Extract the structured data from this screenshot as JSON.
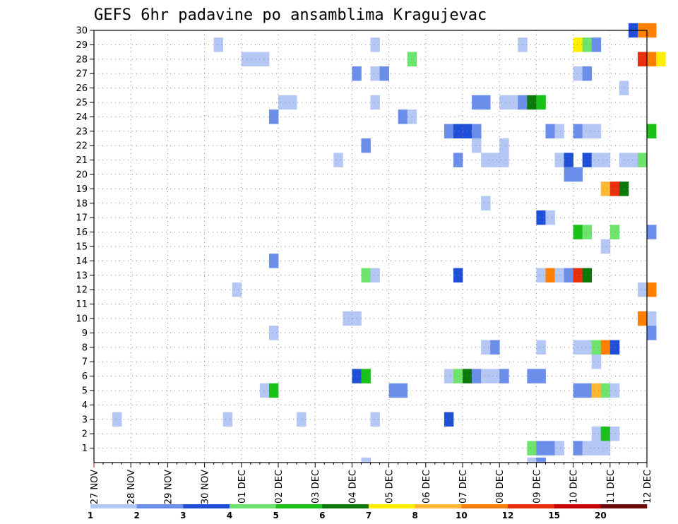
{
  "chart_data": {
    "type": "heatmap",
    "title": "GEFS 6hr padavine po ansamblima Kragujevac",
    "xlabel": "",
    "ylabel": "",
    "x_tick_labels": [
      "27 NOV",
      "28 NOV",
      "29 NOV",
      "30 NOV",
      "01 DEC",
      "02 DEC",
      "03 DEC",
      "04 DEC",
      "05 DEC",
      "06 DEC",
      "07 DEC",
      "08 DEC",
      "09 DEC",
      "10 DEC",
      "11 DEC",
      "12 DEC"
    ],
    "x_time_step_hours": 6,
    "y_tick_labels": [
      "1",
      "2",
      "3",
      "4",
      "5",
      "6",
      "7",
      "8",
      "9",
      "10",
      "11",
      "12",
      "13",
      "14",
      "15",
      "16",
      "17",
      "18",
      "19",
      "20",
      "21",
      "22",
      "23",
      "24",
      "25",
      "26",
      "27",
      "28",
      "29",
      "30"
    ],
    "ylim": [
      0,
      30
    ],
    "grid": true,
    "legend_position": "bottom",
    "legend_labels": [
      "1",
      "2",
      "3",
      "4",
      "5",
      "6",
      "7",
      "8",
      "10",
      "12",
      "15",
      "20"
    ],
    "color_scale": [
      "#b4c7f5",
      "#6b8eea",
      "#1f4fd6",
      "#6ee46e",
      "#19c119",
      "#0b7a0b",
      "#ffee00",
      "#ffb833",
      "#ff7f00",
      "#e8300c",
      "#c40000",
      "#6a0a0a"
    ],
    "cells": [
      {
        "member": 30,
        "t": [
          58
        ],
        "c": 2
      },
      {
        "member": 30,
        "t": [
          59,
          60
        ],
        "c": 8
      },
      {
        "member": 29,
        "t": [
          13
        ],
        "c": 0
      },
      {
        "member": 29,
        "t": [
          30
        ],
        "c": 0
      },
      {
        "member": 29,
        "t": [
          46
        ],
        "c": 0
      },
      {
        "member": 29,
        "t": [
          52
        ],
        "c": 6
      },
      {
        "member": 29,
        "t": [
          53
        ],
        "c": 3
      },
      {
        "member": 29,
        "t": [
          54
        ],
        "c": 1
      },
      {
        "member": 28,
        "t": [
          16,
          17,
          18
        ],
        "c": 0
      },
      {
        "member": 28,
        "t": [
          34
        ],
        "c": 3
      },
      {
        "member": 28,
        "t": [
          59
        ],
        "c": 9
      },
      {
        "member": 28,
        "t": [
          60
        ],
        "c": 8
      },
      {
        "member": 28,
        "t": [
          61
        ],
        "c": 6
      },
      {
        "member": 27,
        "t": [
          28
        ],
        "c": 1
      },
      {
        "member": 27,
        "t": [
          30
        ],
        "c": 0
      },
      {
        "member": 27,
        "t": [
          31
        ],
        "c": 1
      },
      {
        "member": 27,
        "t": [
          52
        ],
        "c": 0
      },
      {
        "member": 27,
        "t": [
          53
        ],
        "c": 1
      },
      {
        "member": 26,
        "t": [
          57
        ],
        "c": 0
      },
      {
        "member": 25,
        "t": [
          20,
          21
        ],
        "c": 0
      },
      {
        "member": 25,
        "t": [
          30
        ],
        "c": 0
      },
      {
        "member": 25,
        "t": [
          41,
          42
        ],
        "c": 1
      },
      {
        "member": 25,
        "t": [
          44,
          45
        ],
        "c": 0
      },
      {
        "member": 25,
        "t": [
          46
        ],
        "c": 1
      },
      {
        "member": 25,
        "t": [
          47
        ],
        "c": 5
      },
      {
        "member": 25,
        "t": [
          48
        ],
        "c": 4
      },
      {
        "member": 24,
        "t": [
          19
        ],
        "c": 1
      },
      {
        "member": 24,
        "t": [
          33
        ],
        "c": 1
      },
      {
        "member": 24,
        "t": [
          34
        ],
        "c": 0
      },
      {
        "member": 23,
        "t": [
          38
        ],
        "c": 1
      },
      {
        "member": 23,
        "t": [
          39,
          40
        ],
        "c": 2
      },
      {
        "member": 23,
        "t": [
          41
        ],
        "c": 1
      },
      {
        "member": 23,
        "t": [
          49
        ],
        "c": 1
      },
      {
        "member": 23,
        "t": [
          50
        ],
        "c": 0
      },
      {
        "member": 23,
        "t": [
          52
        ],
        "c": 1
      },
      {
        "member": 23,
        "t": [
          53,
          54
        ],
        "c": 0
      },
      {
        "member": 23,
        "t": [
          60
        ],
        "c": 4
      },
      {
        "member": 22,
        "t": [
          29
        ],
        "c": 1
      },
      {
        "member": 22,
        "t": [
          41
        ],
        "c": 0
      },
      {
        "member": 22,
        "t": [
          44
        ],
        "c": 0
      },
      {
        "member": 21,
        "t": [
          26
        ],
        "c": 0
      },
      {
        "member": 21,
        "t": [
          39
        ],
        "c": 1
      },
      {
        "member": 21,
        "t": [
          42,
          43,
          44
        ],
        "c": 0
      },
      {
        "member": 21,
        "t": [
          50
        ],
        "c": 0
      },
      {
        "member": 21,
        "t": [
          51
        ],
        "c": 2
      },
      {
        "member": 21,
        "t": [
          53
        ],
        "c": 2
      },
      {
        "member": 21,
        "t": [
          54,
          55
        ],
        "c": 0
      },
      {
        "member": 21,
        "t": [
          57,
          58
        ],
        "c": 0
      },
      {
        "member": 21,
        "t": [
          59
        ],
        "c": 3
      },
      {
        "member": 20,
        "t": [
          51,
          52
        ],
        "c": 1
      },
      {
        "member": 19,
        "t": [
          55
        ],
        "c": 7
      },
      {
        "member": 19,
        "t": [
          56
        ],
        "c": 9
      },
      {
        "member": 19,
        "t": [
          57
        ],
        "c": 5
      },
      {
        "member": 18,
        "t": [
          42
        ],
        "c": 0
      },
      {
        "member": 17,
        "t": [
          48
        ],
        "c": 2
      },
      {
        "member": 17,
        "t": [
          49
        ],
        "c": 0
      },
      {
        "member": 16,
        "t": [
          52
        ],
        "c": 4
      },
      {
        "member": 16,
        "t": [
          53
        ],
        "c": 3
      },
      {
        "member": 16,
        "t": [
          56
        ],
        "c": 3
      },
      {
        "member": 16,
        "t": [
          60
        ],
        "c": 1
      },
      {
        "member": 15,
        "t": [
          55
        ],
        "c": 0
      },
      {
        "member": 14,
        "t": [
          19
        ],
        "c": 1
      },
      {
        "member": 13,
        "t": [
          29
        ],
        "c": 3
      },
      {
        "member": 13,
        "t": [
          30
        ],
        "c": 0
      },
      {
        "member": 13,
        "t": [
          39
        ],
        "c": 2
      },
      {
        "member": 13,
        "t": [
          48
        ],
        "c": 0
      },
      {
        "member": 13,
        "t": [
          49
        ],
        "c": 8
      },
      {
        "member": 13,
        "t": [
          50
        ],
        "c": 0
      },
      {
        "member": 13,
        "t": [
          51
        ],
        "c": 1
      },
      {
        "member": 13,
        "t": [
          52
        ],
        "c": 9
      },
      {
        "member": 13,
        "t": [
          53
        ],
        "c": 5
      },
      {
        "member": 12,
        "t": [
          15
        ],
        "c": 0
      },
      {
        "member": 12,
        "t": [
          59
        ],
        "c": 0
      },
      {
        "member": 12,
        "t": [
          60
        ],
        "c": 8
      },
      {
        "member": 10,
        "t": [
          27,
          28
        ],
        "c": 0
      },
      {
        "member": 10,
        "t": [
          59
        ],
        "c": 8
      },
      {
        "member": 10,
        "t": [
          60
        ],
        "c": 0
      },
      {
        "member": 9,
        "t": [
          19
        ],
        "c": 0
      },
      {
        "member": 9,
        "t": [
          60
        ],
        "c": 1
      },
      {
        "member": 8,
        "t": [
          42
        ],
        "c": 0
      },
      {
        "member": 8,
        "t": [
          43
        ],
        "c": 1
      },
      {
        "member": 8,
        "t": [
          48
        ],
        "c": 0
      },
      {
        "member": 8,
        "t": [
          52,
          53
        ],
        "c": 0
      },
      {
        "member": 8,
        "t": [
          54
        ],
        "c": 3
      },
      {
        "member": 8,
        "t": [
          55
        ],
        "c": 8
      },
      {
        "member": 8,
        "t": [
          56
        ],
        "c": 2
      },
      {
        "member": 7,
        "t": [
          54
        ],
        "c": 0
      },
      {
        "member": 6,
        "t": [
          28
        ],
        "c": 2
      },
      {
        "member": 6,
        "t": [
          29
        ],
        "c": 4
      },
      {
        "member": 6,
        "t": [
          38
        ],
        "c": 0
      },
      {
        "member": 6,
        "t": [
          39
        ],
        "c": 3
      },
      {
        "member": 6,
        "t": [
          40
        ],
        "c": 5
      },
      {
        "member": 6,
        "t": [
          41
        ],
        "c": 1
      },
      {
        "member": 6,
        "t": [
          42,
          43
        ],
        "c": 0
      },
      {
        "member": 6,
        "t": [
          44
        ],
        "c": 1
      },
      {
        "member": 6,
        "t": [
          47,
          48
        ],
        "c": 1
      },
      {
        "member": 5,
        "t": [
          18
        ],
        "c": 0
      },
      {
        "member": 5,
        "t": [
          19
        ],
        "c": 4
      },
      {
        "member": 5,
        "t": [
          32,
          33
        ],
        "c": 1
      },
      {
        "member": 5,
        "t": [
          52,
          53
        ],
        "c": 1
      },
      {
        "member": 5,
        "t": [
          54
        ],
        "c": 7
      },
      {
        "member": 5,
        "t": [
          55
        ],
        "c": 3
      },
      {
        "member": 5,
        "t": [
          56
        ],
        "c": 0
      },
      {
        "member": 3,
        "t": [
          2
        ],
        "c": 0
      },
      {
        "member": 3,
        "t": [
          14
        ],
        "c": 0
      },
      {
        "member": 3,
        "t": [
          22
        ],
        "c": 0
      },
      {
        "member": 3,
        "t": [
          30
        ],
        "c": 0
      },
      {
        "member": 3,
        "t": [
          38
        ],
        "c": 2
      },
      {
        "member": 2,
        "t": [
          54
        ],
        "c": 0
      },
      {
        "member": 2,
        "t": [
          55
        ],
        "c": 4
      },
      {
        "member": 2,
        "t": [
          56
        ],
        "c": 0
      },
      {
        "member": 1,
        "t": [
          47
        ],
        "c": 3
      },
      {
        "member": 1,
        "t": [
          48,
          49
        ],
        "c": 1
      },
      {
        "member": 1,
        "t": [
          50
        ],
        "c": 0
      },
      {
        "member": 1,
        "t": [
          52
        ],
        "c": 1
      },
      {
        "member": 1,
        "t": [
          53,
          54,
          55
        ],
        "c": 0
      },
      {
        "member": 0,
        "t": [
          29
        ],
        "c": 0
      },
      {
        "member": 0,
        "t": [
          47
        ],
        "c": 0
      },
      {
        "member": 0,
        "t": [
          48
        ],
        "c": 1
      }
    ]
  }
}
